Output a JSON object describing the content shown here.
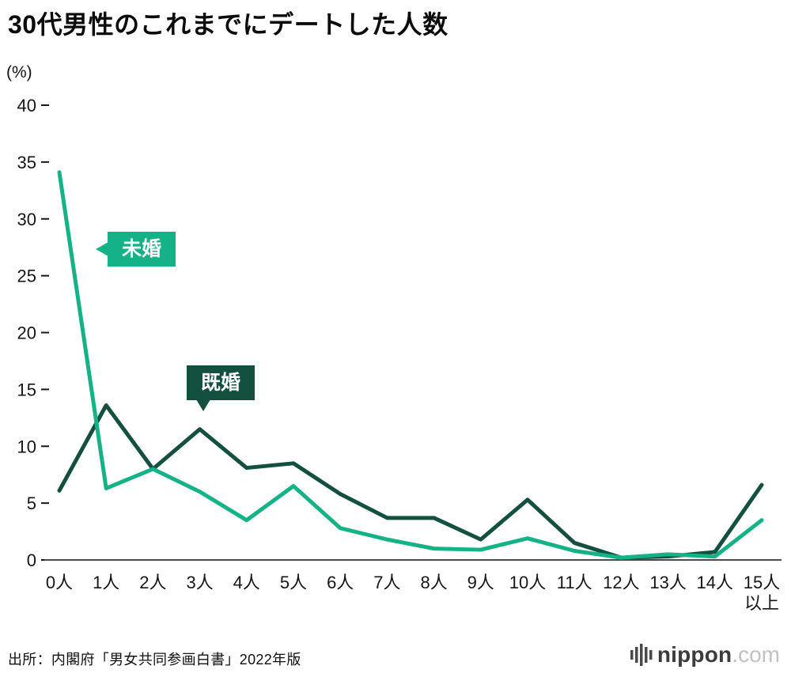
{
  "page": {
    "background": "#ffffff"
  },
  "header": {
    "title": "30代男性のこれまでにデートした人数",
    "unit_label": "(%)"
  },
  "footer": {
    "source": "出所：内閣府「男女共同参画白書」2022年版",
    "logo": {
      "name": "nippon",
      "suffix": ".com"
    }
  },
  "chart_data": {
    "type": "line",
    "title": "30代男性のこれまでにデートした人数",
    "xlabel": "",
    "ylabel": "(%)",
    "ylim": [
      0,
      40
    ],
    "ytick_step": 5,
    "grid": false,
    "legend_position": "inline-callouts",
    "categories": [
      "0人",
      "1人",
      "2人",
      "3人",
      "4人",
      "5人",
      "6人",
      "7人",
      "8人",
      "9人",
      "10人",
      "11人",
      "12人",
      "13人",
      "14人",
      "15人\n以上"
    ],
    "series": [
      {
        "name": "既婚",
        "color": "#14503f",
        "values": [
          6.1,
          13.6,
          8.0,
          11.5,
          8.1,
          8.5,
          5.8,
          3.7,
          3.7,
          1.8,
          5.3,
          1.5,
          0.2,
          0.3,
          0.7,
          6.6
        ]
      },
      {
        "name": "未婚",
        "color": "#16b287",
        "values": [
          34.1,
          6.3,
          8.0,
          6.0,
          3.5,
          6.5,
          2.8,
          1.8,
          1.0,
          0.9,
          1.9,
          0.8,
          0.2,
          0.5,
          0.3,
          3.5
        ]
      }
    ]
  }
}
